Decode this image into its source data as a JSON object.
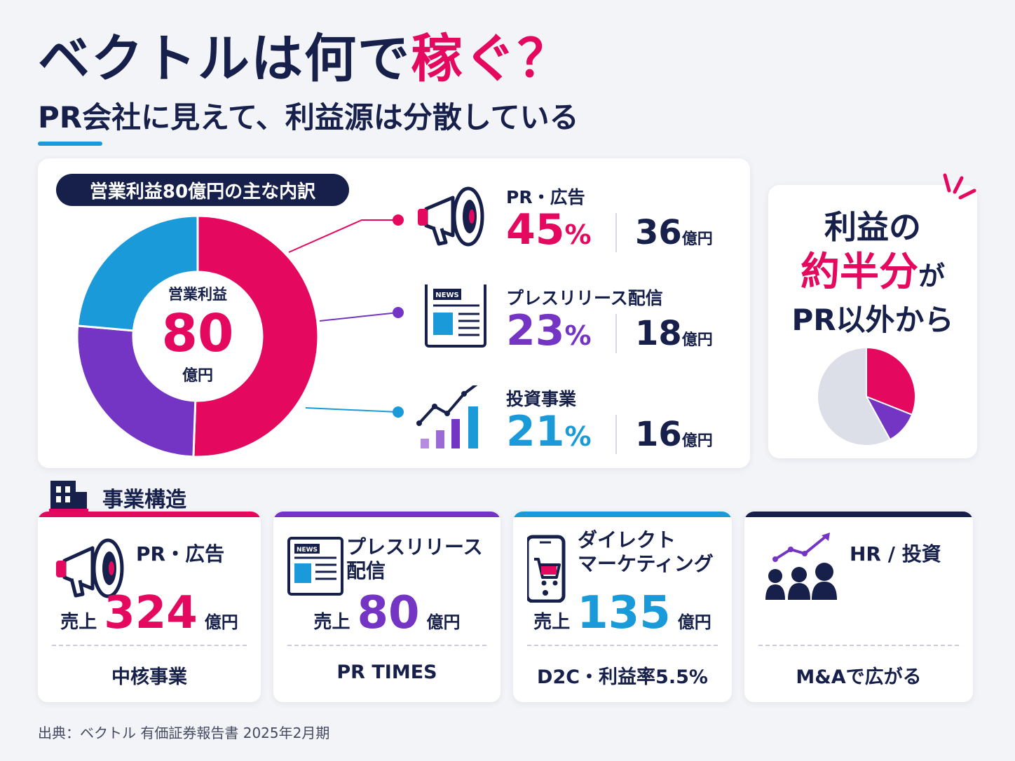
{
  "header": {
    "title_main": "ベクトルは何で",
    "title_accent": "稼ぐ？",
    "subtitle": "PR会社に見えて、利益源は分散している"
  },
  "breakdown": {
    "pill_label": "営業利益80億円の主な内訳",
    "center_label": "営業利益",
    "center_value": "80",
    "center_unit": "億円",
    "segments": [
      {
        "name": "PR・広告",
        "pct": "45",
        "pct_unit": "%",
        "amount": "36",
        "amount_unit": "億円",
        "icon": "megaphone-icon"
      },
      {
        "name": "プレスリリース配信",
        "pct": "23",
        "pct_unit": "%",
        "amount": "18",
        "amount_unit": "億円",
        "icon": "newspaper-icon"
      },
      {
        "name": "投資事業",
        "pct": "21",
        "pct_unit": "%",
        "amount": "16",
        "amount_unit": "億円",
        "icon": "growth-chart-icon"
      }
    ]
  },
  "side": {
    "line1": "利益の",
    "line2": "約半分",
    "line2_suffix": "が",
    "line3": "PR以外から"
  },
  "business": {
    "section_title": "事業構造",
    "sales_label": "売上",
    "units": [
      {
        "name": "PR・広告",
        "sales": "324",
        "unit": "億円",
        "note": "中核事業",
        "icon": "megaphone-icon"
      },
      {
        "name": "プレスリリース\n配信",
        "sales": "80",
        "unit": "億円",
        "note": "PR TIMES",
        "icon": "newspaper-icon"
      },
      {
        "name": "ダイレクト\nマーケティング",
        "sales": "135",
        "unit": "億円",
        "note": "D2C・利益率5.5%",
        "icon": "smartphone-cart-icon"
      },
      {
        "name": "HR / 投資",
        "sales": "",
        "unit": "",
        "note": "M&Aで広がる",
        "icon": "people-growth-icon"
      }
    ]
  },
  "source": "出典：ベクトル 有価証券報告書 2025年2月期",
  "colors": {
    "pr": "#e4095f",
    "press": "#7535c4",
    "invest": "#1a9ad8",
    "other": "#dddfe8",
    "navy": "#16204a"
  },
  "chart_data": [
    {
      "type": "pie",
      "title": "営業利益80億円の主な内訳",
      "categories": [
        "PR・広告",
        "プレスリリース配信",
        "投資事業"
      ],
      "values": [
        45,
        23,
        21
      ],
      "units": "%",
      "amounts": [
        36,
        18,
        16
      ],
      "amount_unit": "億円"
    },
    {
      "type": "pie",
      "categories": [
        "PR・広告",
        "プレスリリース配信",
        "その他"
      ],
      "values": [
        31,
        11,
        58
      ]
    },
    {
      "type": "table",
      "title": "事業構造",
      "categories": [
        "PR・広告",
        "プレスリリース配信",
        "ダイレクトマーケティング",
        "HR / 投資"
      ],
      "values": [
        324,
        80,
        135,
        null
      ],
      "unit": "億円"
    }
  ]
}
